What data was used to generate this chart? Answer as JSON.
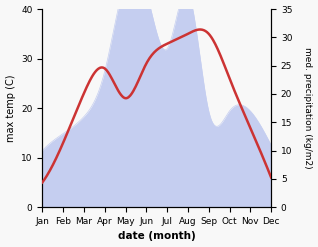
{
  "months": [
    "Jan",
    "Feb",
    "Mar",
    "Apr",
    "May",
    "Jun",
    "Jul",
    "Aug",
    "Sep",
    "Oct",
    "Nov",
    "Dec"
  ],
  "max_temp": [
    5,
    13,
    23,
    28,
    22,
    29,
    33,
    35,
    35,
    26,
    16,
    6
  ],
  "precipitation": [
    10,
    13,
    16,
    24,
    40,
    38,
    28,
    38,
    17,
    17,
    17,
    11
  ],
  "temp_color": "#cc3333",
  "precip_fill_color": "#c5cef0",
  "left_ylim": [
    0,
    40
  ],
  "right_ylim": [
    0,
    35
  ],
  "left_yticks": [
    0,
    10,
    20,
    30,
    40
  ],
  "right_yticks": [
    0,
    5,
    10,
    15,
    20,
    25,
    30,
    35
  ],
  "xlabel": "date (month)",
  "ylabel_left": "max temp (C)",
  "ylabel_right": "med. precipitation (kg/m2)",
  "temp_linewidth": 1.8,
  "fig_width": 3.18,
  "fig_height": 2.47,
  "dpi": 100,
  "bg_color": "#f8f8f8"
}
